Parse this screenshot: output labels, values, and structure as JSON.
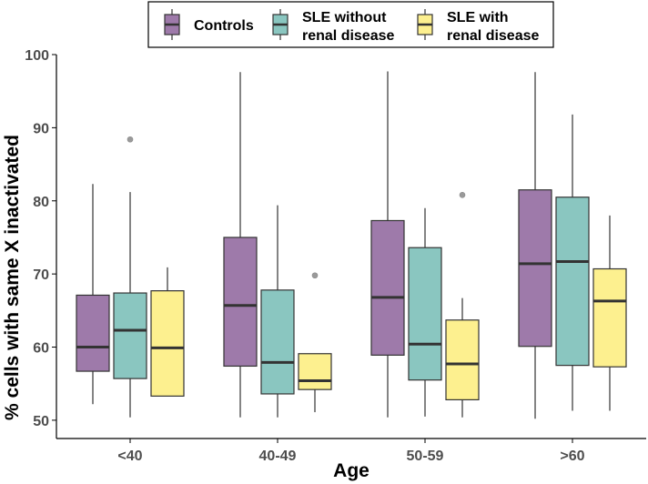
{
  "chart_data": {
    "type": "boxplot",
    "title": "",
    "xlabel": "Age",
    "ylabel": "% cells with same X inactivated",
    "ylim": [
      47.5,
      100
    ],
    "yticks": [
      50,
      60,
      70,
      80,
      90,
      100
    ],
    "categories": [
      "<40",
      "40-49",
      "50-59",
      ">60"
    ],
    "legend_position": "top",
    "series": [
      {
        "name": "Controls",
        "legend_lines": [
          "Controls"
        ],
        "color": "#9e7aaa",
        "boxes": [
          {
            "min": 52.2,
            "q1": 56.7,
            "median": 60.0,
            "q3": 67.1,
            "max": 82.3,
            "outliers": []
          },
          {
            "min": 50.4,
            "q1": 57.4,
            "median": 65.7,
            "q3": 75.0,
            "max": 97.6,
            "outliers": []
          },
          {
            "min": 50.4,
            "q1": 58.9,
            "median": 66.8,
            "q3": 77.3,
            "max": 97.7,
            "outliers": []
          },
          {
            "min": 50.2,
            "q1": 60.1,
            "median": 71.4,
            "q3": 81.5,
            "max": 97.6,
            "outliers": []
          }
        ]
      },
      {
        "name": "SLE without renal disease",
        "legend_lines": [
          "SLE without",
          "renal disease"
        ],
        "color": "#8ac6c0",
        "boxes": [
          {
            "min": 50.4,
            "q1": 55.7,
            "median": 62.3,
            "q3": 67.4,
            "max": 81.2,
            "outliers": [
              88.4
            ]
          },
          {
            "min": 50.4,
            "q1": 53.6,
            "median": 57.9,
            "q3": 67.8,
            "max": 79.4,
            "outliers": []
          },
          {
            "min": 50.5,
            "q1": 55.5,
            "median": 60.4,
            "q3": 73.6,
            "max": 79.0,
            "outliers": []
          },
          {
            "min": 51.3,
            "q1": 57.5,
            "median": 71.7,
            "q3": 80.5,
            "max": 91.8,
            "outliers": []
          }
        ]
      },
      {
        "name": "SLE with renal disease",
        "legend_lines": [
          "SLE with",
          "renal disease"
        ],
        "color": "#fdf08f",
        "boxes": [
          {
            "min": 53.3,
            "q1": 53.3,
            "median": 59.9,
            "q3": 67.7,
            "max": 70.9,
            "outliers": []
          },
          {
            "min": 51.1,
            "q1": 54.2,
            "median": 55.4,
            "q3": 59.1,
            "max": 59.1,
            "outliers": [
              69.8
            ]
          },
          {
            "min": 50.4,
            "q1": 52.8,
            "median": 57.7,
            "q3": 63.7,
            "max": 66.7,
            "outliers": [
              80.8
            ]
          },
          {
            "min": 51.3,
            "q1": 57.3,
            "median": 66.3,
            "q3": 70.7,
            "max": 78.0,
            "outliers": []
          }
        ]
      }
    ]
  }
}
